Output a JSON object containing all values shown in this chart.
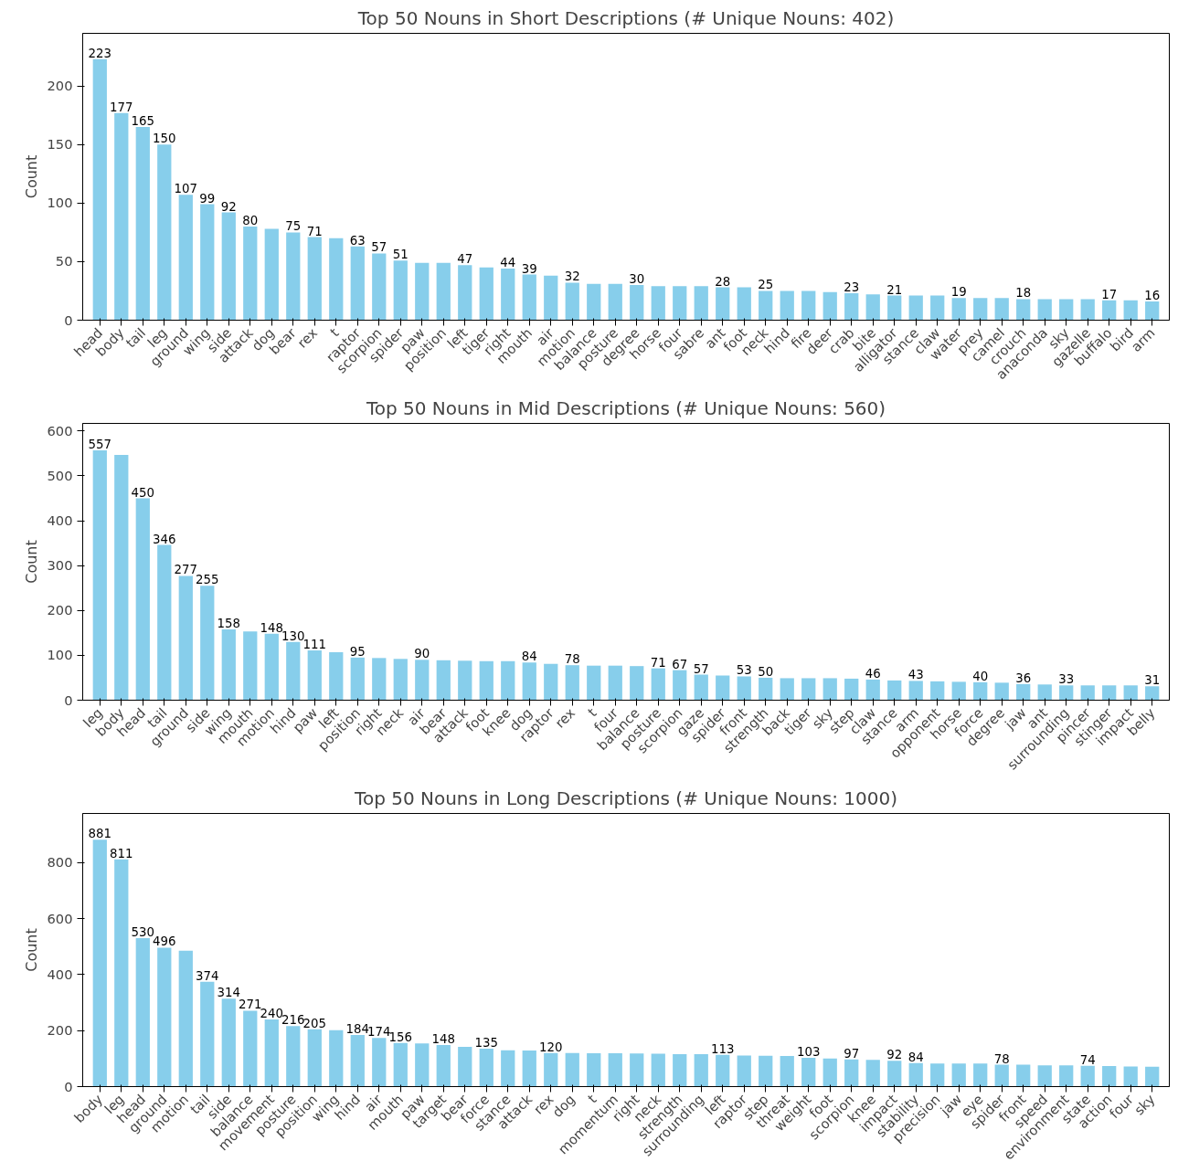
{
  "chart_data": [
    {
      "type": "bar",
      "title": "Top 50 Nouns in Short Descriptions (# Unique Nouns: 402)",
      "ylabel": "Count",
      "color": "#87ceeb",
      "ylim": [
        0,
        245
      ],
      "yticks": [
        0,
        50,
        100,
        150,
        200
      ],
      "categories": [
        "head",
        "body",
        "tail",
        "leg",
        "ground",
        "wing",
        "side",
        "attack",
        "dog",
        "bear",
        "rex",
        "t",
        "raptor",
        "scorpion",
        "spider",
        "paw",
        "position",
        "left",
        "tiger",
        "right",
        "mouth",
        "air",
        "motion",
        "balance",
        "posture",
        "degree",
        "horse",
        "four",
        "sabre",
        "ant",
        "foot",
        "neck",
        "hind",
        "fire",
        "deer",
        "crab",
        "bite",
        "alligator",
        "stance",
        "claw",
        "water",
        "prey",
        "camel",
        "crouch",
        "anaconda",
        "sky",
        "gazelle",
        "buffalo",
        "bird",
        "arm"
      ],
      "values": [
        223,
        177,
        165,
        150,
        107,
        99,
        92,
        80,
        78,
        75,
        71,
        70,
        63,
        57,
        51,
        49,
        49,
        47,
        45,
        44,
        39,
        38,
        32,
        31,
        31,
        30,
        29,
        29,
        29,
        28,
        28,
        25,
        25,
        25,
        24,
        23,
        22,
        21,
        21,
        21,
        19,
        19,
        19,
        18,
        18,
        18,
        18,
        17,
        17,
        16
      ],
      "value_labels": [
        "223",
        "177",
        "165",
        "150",
        "107",
        "99",
        "92",
        "80",
        null,
        "75",
        "71",
        null,
        "63",
        "57",
        "51",
        null,
        null,
        "47",
        null,
        "44",
        "39",
        null,
        "32",
        null,
        null,
        "30",
        null,
        null,
        null,
        "28",
        null,
        "25",
        null,
        null,
        null,
        "23",
        null,
        "21",
        null,
        null,
        "19",
        null,
        null,
        "18",
        null,
        null,
        null,
        "17",
        null,
        "16"
      ]
    },
    {
      "type": "bar",
      "title": "Top 50 Nouns in Mid Descriptions (# Unique Nouns: 560)",
      "ylabel": "Count",
      "color": "#87ceeb",
      "ylim": [
        0,
        617
      ],
      "yticks": [
        0,
        100,
        200,
        300,
        400,
        500,
        600
      ],
      "categories": [
        "leg",
        "body",
        "head",
        "tail",
        "ground",
        "side",
        "wing",
        "mouth",
        "motion",
        "hind",
        "paw",
        "left",
        "position",
        "right",
        "neck",
        "air",
        "bear",
        "attack",
        "foot",
        "knee",
        "dog",
        "raptor",
        "rex",
        "t",
        "four",
        "balance",
        "posture",
        "scorpion",
        "gaze",
        "spider",
        "front",
        "strength",
        "back",
        "tiger",
        "sky",
        "step",
        "claw",
        "stance",
        "arm",
        "opponent",
        "horse",
        "force",
        "degree",
        "jaw",
        "ant",
        "surrounding",
        "pincer",
        "stinger",
        "impact",
        "belly"
      ],
      "values": [
        557,
        547,
        450,
        346,
        277,
        255,
        158,
        153,
        148,
        130,
        111,
        107,
        95,
        94,
        92,
        90,
        89,
        88,
        87,
        87,
        84,
        81,
        78,
        77,
        77,
        76,
        71,
        67,
        57,
        55,
        53,
        50,
        49,
        49,
        49,
        48,
        46,
        44,
        43,
        42,
        41,
        40,
        39,
        36,
        35,
        33,
        33,
        33,
        33,
        31
      ],
      "value_labels": [
        "557",
        null,
        "450",
        "346",
        "277",
        "255",
        "158",
        null,
        "148",
        "130",
        "111",
        null,
        "95",
        null,
        null,
        "90",
        null,
        null,
        null,
        null,
        "84",
        null,
        "78",
        null,
        null,
        null,
        "71",
        "67",
        "57",
        null,
        "53",
        "50",
        null,
        null,
        null,
        null,
        "46",
        null,
        "43",
        null,
        null,
        "40",
        null,
        "36",
        null,
        "33",
        null,
        null,
        null,
        "31"
      ]
    },
    {
      "type": "bar",
      "title": "Top 50 Nouns in Long Descriptions (# Unique Nouns: 1000)",
      "ylabel": "Count",
      "color": "#87ceeb",
      "ylim": [
        0,
        975
      ],
      "yticks": [
        0,
        200,
        400,
        600,
        800
      ],
      "categories": [
        "body",
        "leg",
        "head",
        "ground",
        "motion",
        "tail",
        "side",
        "balance",
        "movement",
        "posture",
        "position",
        "wing",
        "hind",
        "air",
        "mouth",
        "paw",
        "target",
        "bear",
        "force",
        "stance",
        "attack",
        "rex",
        "dog",
        "t",
        "momentum",
        "right",
        "neck",
        "strength",
        "surrounding",
        "left",
        "raptor",
        "step",
        "threat",
        "weight",
        "foot",
        "scorpion",
        "knee",
        "impact",
        "stability",
        "precision",
        "jaw",
        "eye",
        "spider",
        "front",
        "speed",
        "environment",
        "state",
        "action",
        "four",
        "sky"
      ],
      "values": [
        881,
        811,
        530,
        496,
        485,
        374,
        314,
        271,
        240,
        216,
        205,
        201,
        184,
        174,
        156,
        154,
        148,
        142,
        135,
        130,
        129,
        120,
        120,
        119,
        119,
        118,
        117,
        116,
        116,
        113,
        111,
        110,
        109,
        103,
        100,
        97,
        95,
        92,
        84,
        82,
        82,
        82,
        78,
        78,
        76,
        76,
        74,
        73,
        72,
        71
      ],
      "value_labels": [
        "881",
        "811",
        "530",
        "496",
        null,
        "374",
        "314",
        "271",
        "240",
        "216",
        "205",
        null,
        "184",
        "174",
        "156",
        null,
        "148",
        null,
        "135",
        null,
        null,
        "120",
        null,
        null,
        null,
        null,
        null,
        null,
        null,
        "113",
        null,
        null,
        null,
        "103",
        null,
        "97",
        null,
        "92",
        "84",
        null,
        null,
        null,
        "78",
        null,
        null,
        null,
        "74",
        null,
        null,
        null
      ]
    }
  ]
}
